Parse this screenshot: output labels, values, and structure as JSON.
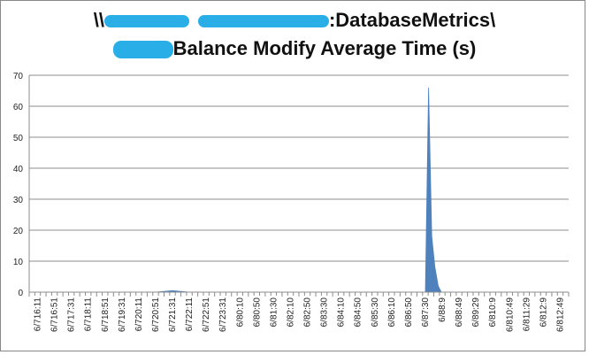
{
  "title": {
    "line1_prefix": "\\\\",
    "line1_suffix": ":DatabaseMetrics\\",
    "line2_suffix": "Balance Modify Average Time (s)",
    "redaction_color": "#29aee8"
  },
  "chart_data": {
    "type": "area",
    "title": "Balance Modify Average Time (s)",
    "xlabel": "",
    "ylabel": "",
    "ylim": [
      0,
      70
    ],
    "yticks": [
      0,
      10,
      20,
      30,
      40,
      50,
      60,
      70
    ],
    "grid": true,
    "legend": "none",
    "fill_color": "#4f81bd",
    "categories": [
      "6/716:11",
      "6/716:51",
      "6/717:31",
      "6/718:11",
      "6/718:51",
      "6/719:31",
      "6/720:11",
      "6/720:51",
      "6/721:31",
      "6/722:11",
      "6/722:51",
      "6/723:31",
      "6/80:10",
      "6/80:50",
      "6/81:30",
      "6/82:10",
      "6/82:50",
      "6/83:30",
      "6/84:10",
      "6/84:50",
      "6/85:30",
      "6/86:10",
      "6/86:50",
      "6/87:30",
      "6/88:9",
      "6/88:49",
      "6/89:29",
      "6/810:9",
      "6/810:49",
      "6/811:29",
      "6/812:9",
      "6/812:49"
    ],
    "values": [
      0,
      0,
      0,
      0,
      0,
      0,
      0,
      0,
      0.5,
      0,
      0,
      0,
      0,
      0,
      0,
      0,
      0,
      0,
      0,
      0,
      0,
      0,
      0,
      0,
      0,
      0,
      0,
      0,
      0,
      0,
      0,
      0
    ],
    "peak": [
      {
        "after_category": "6/87:30",
        "value": 0
      },
      {
        "after_category": "6/87:30",
        "value": 66
      },
      {
        "after_category": "6/87:30",
        "value": 18
      },
      {
        "after_category": "6/87:30",
        "value": 8
      },
      {
        "after_category": "6/87:30",
        "value": 2
      },
      {
        "after_category": "6/87:30",
        "value": 0
      }
    ]
  }
}
